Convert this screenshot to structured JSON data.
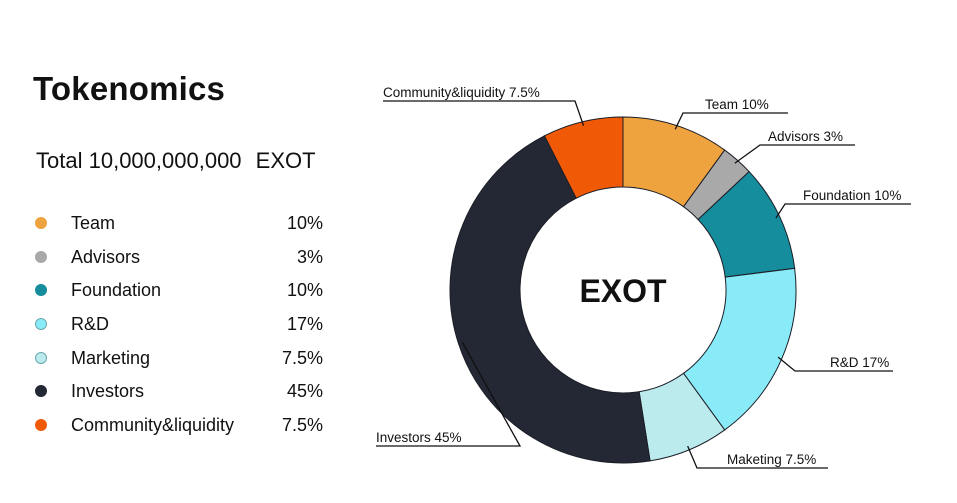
{
  "header": {
    "title": "Tokenomics"
  },
  "total": {
    "label": "Total",
    "amount": "10,000,000,000",
    "unit": "EXOT"
  },
  "colors": {
    "team": "#efa33f",
    "advisors": "#a9a9a9",
    "foundation": "#168d9c",
    "rd": "#8aebf8",
    "marketing": "#bcebee",
    "investors": "#232834",
    "community": "#f05a07"
  },
  "legend": {
    "items": [
      {
        "label": "Team",
        "value": "10%",
        "color": "#efa33f"
      },
      {
        "label": "Advisors",
        "value": "3%",
        "color": "#a9a9a9"
      },
      {
        "label": "Foundation",
        "value": "10%",
        "color": "#168d9c"
      },
      {
        "label": "R&D",
        "value": "17%",
        "color": "#8aebf8"
      },
      {
        "label": "Marketing",
        "value": "7.5%",
        "color": "#bcebee"
      },
      {
        "label": "Investors",
        "value": "45%",
        "color": "#232834"
      },
      {
        "label": "Community&liquidity",
        "value": "7.5%",
        "color": "#f05a07"
      }
    ]
  },
  "chart_data": {
    "type": "pie",
    "title": "EXOT",
    "categories": [
      "Team",
      "Advisors",
      "Foundation",
      "R&D",
      "Marketing",
      "Investors",
      "Community&liquidity"
    ],
    "values": [
      10,
      3,
      10,
      17,
      7.5,
      45,
      7.5
    ],
    "slice_labels": [
      "Team 10%",
      "Advisors 3%",
      "Foundation 10%",
      "R&D 17%",
      "Maketing 7.5%",
      "Investors 45%",
      "Community&liquidity 7.5%"
    ],
    "colors": [
      "#efa33f",
      "#a9a9a9",
      "#168d9c",
      "#8aebf8",
      "#bcebee",
      "#232834",
      "#f05a07"
    ],
    "donut": true,
    "start_angle_deg": 0,
    "direction": "clockwise"
  }
}
